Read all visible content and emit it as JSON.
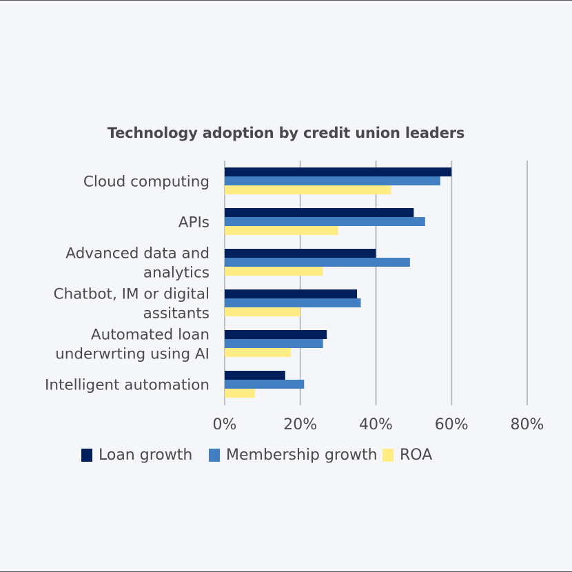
{
  "chart_data": {
    "type": "bar",
    "orientation": "horizontal",
    "title": "Technology adoption by credit union leaders",
    "xlabel": "",
    "ylabel": "",
    "xlim": [
      0,
      80
    ],
    "x_ticks": [
      0,
      20,
      40,
      60,
      80
    ],
    "x_tick_labels": [
      "0%",
      "20%",
      "40%",
      "60%",
      "80%"
    ],
    "grid": "vertical",
    "legend_position": "bottom",
    "categories": [
      [
        "Cloud computing"
      ],
      [
        "APIs"
      ],
      [
        "Advanced data and",
        "analytics"
      ],
      [
        "Chatbot, IM or digital",
        "assitants"
      ],
      [
        "Automated loan",
        "underwrting using AI"
      ],
      [
        "Intelligent automation"
      ]
    ],
    "series": [
      {
        "name": "Loan growth",
        "color": "#001f5b",
        "values": [
          60,
          50,
          40,
          35,
          27,
          16
        ]
      },
      {
        "name": "Membership growth",
        "color": "#427ec2",
        "values": [
          57,
          53,
          49,
          36,
          26,
          21
        ]
      },
      {
        "name": "ROA",
        "color": "#ffec85",
        "values": [
          44,
          30,
          26,
          20,
          17.5,
          8
        ]
      }
    ]
  },
  "colors": {
    "background": "#f4f6f9",
    "text": "#4a4a4c",
    "grid": "#bdbec1"
  }
}
